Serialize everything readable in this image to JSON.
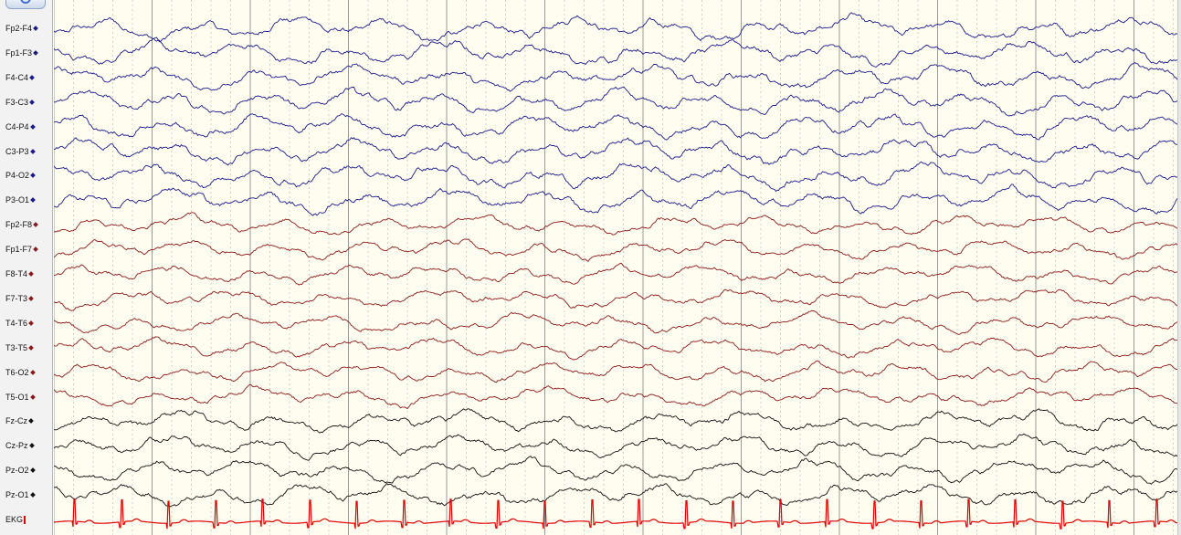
{
  "channels": [
    {
      "label": "Fp2-F4",
      "color": "#1a1a8c",
      "group": "parasagittal"
    },
    {
      "label": "Fp1-F3",
      "color": "#1a1a8c",
      "group": "parasagittal"
    },
    {
      "label": "F4-C4",
      "color": "#1a1a8c",
      "group": "parasagittal"
    },
    {
      "label": "F3-C3",
      "color": "#1a1a8c",
      "group": "parasagittal"
    },
    {
      "label": "C4-P4",
      "color": "#1a1a8c",
      "group": "parasagittal"
    },
    {
      "label": "C3-P3",
      "color": "#1a1a8c",
      "group": "parasagittal"
    },
    {
      "label": "P4-O2",
      "color": "#1a1a8c",
      "group": "parasagittal"
    },
    {
      "label": "P3-O1",
      "color": "#1a1a8c",
      "group": "parasagittal"
    },
    {
      "label": "Fp2-F8",
      "color": "#8b1a1a",
      "group": "temporal"
    },
    {
      "label": "Fp1-F7",
      "color": "#8b1a1a",
      "group": "temporal"
    },
    {
      "label": "F8-T4",
      "color": "#8b1a1a",
      "group": "temporal"
    },
    {
      "label": "F7-T3",
      "color": "#8b1a1a",
      "group": "temporal"
    },
    {
      "label": "T4-T6",
      "color": "#8b1a1a",
      "group": "temporal"
    },
    {
      "label": "T3-T5",
      "color": "#8b1a1a",
      "group": "temporal"
    },
    {
      "label": "T6-O2",
      "color": "#8b1a1a",
      "group": "temporal"
    },
    {
      "label": "T5-O1",
      "color": "#8b1a1a",
      "group": "temporal"
    },
    {
      "label": "Fz-Cz",
      "color": "#111111",
      "group": "midline"
    },
    {
      "label": "Cz-Pz",
      "color": "#111111",
      "group": "midline"
    },
    {
      "label": "Pz-O2",
      "color": "#111111",
      "group": "midline"
    },
    {
      "label": "Pz-O1",
      "color": "#111111",
      "group": "midline"
    },
    {
      "label": "EKG",
      "color": "#e00000",
      "group": "ekg"
    }
  ],
  "colors": {
    "background": "#fffdf0",
    "panel": "#f2f2f2",
    "grid_major": "#9a9a9a",
    "grid_minor": "#cfcfcf",
    "parasagittal": "#1a1a8c",
    "temporal": "#8b1a1a",
    "midline": "#111111",
    "ekg": "#e00000"
  },
  "icons": {
    "top_button": "circle-icon",
    "channel_marker": "diamond-icon",
    "ekg_marker": "bar-icon"
  }
}
